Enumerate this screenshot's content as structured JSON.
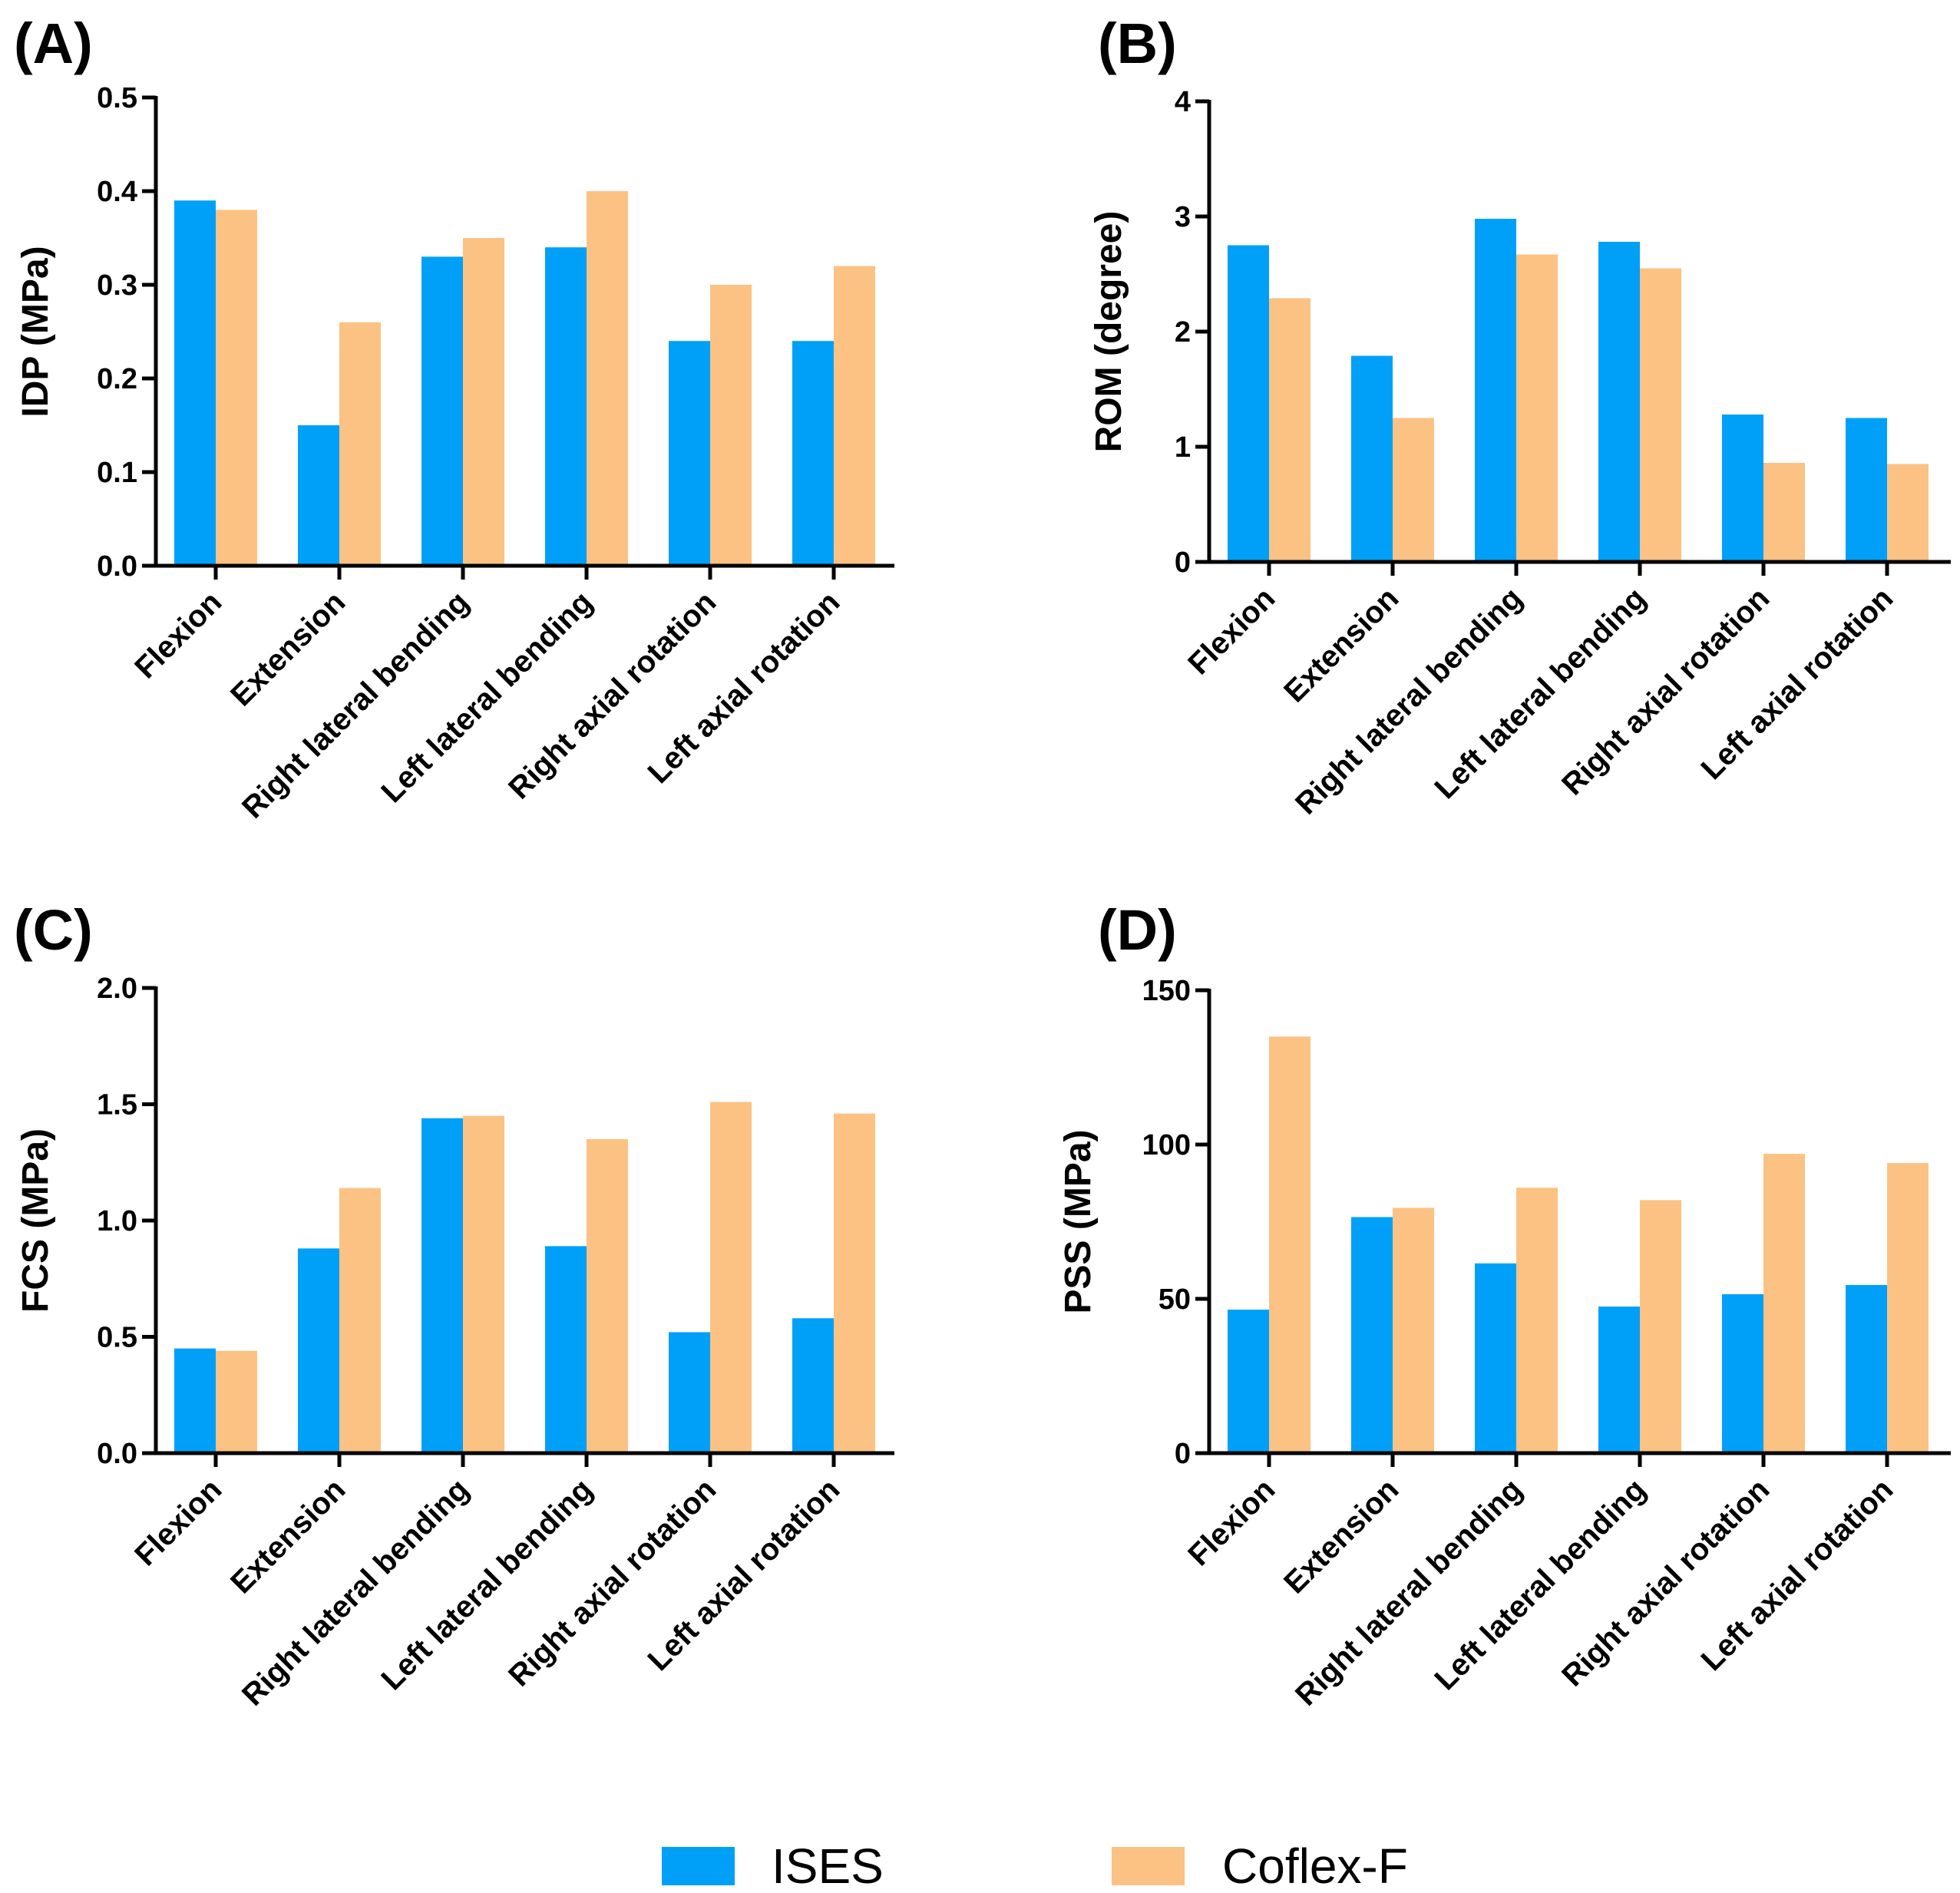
{
  "colors": {
    "ISES": "#00A0F8",
    "Coflex-F": "#FBC283",
    "axis": "#000000"
  },
  "legend": [
    {
      "name": "ISES",
      "color": "#00A0F8"
    },
    {
      "name": "Coflex-F",
      "color": "#FBC283"
    }
  ],
  "chart_data": [
    {
      "panel": "(A)",
      "type": "bar",
      "ylabel": "IDP (MPa)",
      "ylim": [
        0,
        0.5
      ],
      "yticks": [
        "0.0",
        "0.1",
        "0.2",
        "0.3",
        "0.4",
        "0.5"
      ],
      "categories": [
        "Flexion",
        "Extension",
        "Right lateral bending",
        "Left lateral bending",
        "Right axial rotation",
        "Left axial rotation"
      ],
      "series": [
        {
          "name": "ISES",
          "values": [
            0.39,
            0.15,
            0.33,
            0.34,
            0.24,
            0.24
          ]
        },
        {
          "name": "Coflex-F",
          "values": [
            0.38,
            0.26,
            0.35,
            0.4,
            0.3,
            0.32
          ]
        }
      ]
    },
    {
      "panel": "(B)",
      "type": "bar",
      "ylabel": "ROM (degree)",
      "ylim": [
        0,
        4
      ],
      "yticks": [
        "0",
        "1",
        "2",
        "3",
        "4"
      ],
      "categories": [
        "Flexion",
        "Extension",
        "Right lateral bending",
        "Left lateral bending",
        "Right axial rotation",
        "Left axial rotation"
      ],
      "series": [
        {
          "name": "ISES",
          "values": [
            2.75,
            1.79,
            2.98,
            2.78,
            1.28,
            1.25
          ]
        },
        {
          "name": "Coflex-F",
          "values": [
            2.29,
            1.25,
            2.67,
            2.55,
            0.86,
            0.85
          ]
        }
      ]
    },
    {
      "panel": "(C)",
      "type": "bar",
      "ylabel": "FCS (MPa)",
      "ylim": [
        0,
        2.0
      ],
      "yticks": [
        "0.0",
        "0.5",
        "1.0",
        "1.5",
        "2.0"
      ],
      "categories": [
        "Flexion",
        "Extension",
        "Right lateral bending",
        "Left lateral bending",
        "Right axial rotation",
        "Left axial rotation"
      ],
      "series": [
        {
          "name": "ISES",
          "values": [
            0.45,
            0.88,
            1.44,
            0.89,
            0.52,
            0.58
          ]
        },
        {
          "name": "Coflex-F",
          "values": [
            0.44,
            1.14,
            1.45,
            1.35,
            1.51,
            1.46
          ]
        }
      ]
    },
    {
      "panel": "(D)",
      "type": "bar",
      "ylabel": "PSS (MPa)",
      "ylim": [
        0,
        150
      ],
      "yticks": [
        "0",
        "50",
        "100",
        "150"
      ],
      "categories": [
        "Flexion",
        "Extension",
        "Right lateral bending",
        "Left lateral bending",
        "Right axial rotation",
        "Left axial rotation"
      ],
      "series": [
        {
          "name": "ISES",
          "values": [
            46.5,
            76.5,
            61.5,
            47.5,
            51.5,
            54.5
          ]
        },
        {
          "name": "Coflex-F",
          "values": [
            135.0,
            79.5,
            86.0,
            82.0,
            97.0,
            94.0
          ]
        }
      ]
    }
  ]
}
